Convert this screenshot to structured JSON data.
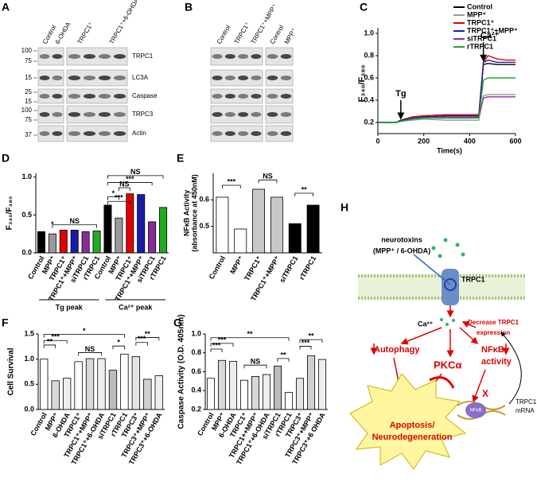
{
  "blots": [
    {
      "label": "A",
      "columns": [
        "Control",
        "6-OHDA",
        "TRPC1⁺",
        "TRPC1⁺+6-OHDA"
      ],
      "rows": [
        "TRPC1",
        "LC3A",
        "Caspase",
        "TRPC3",
        "Actin"
      ],
      "markers": [
        100,
        75,
        15,
        25,
        15,
        100,
        75,
        37
      ]
    },
    {
      "label": "B",
      "columns": [
        "Control",
        "TRPC1⁺",
        "TRPC1⁺+MPP⁺",
        "Control",
        "MPP⁺"
      ]
    }
  ],
  "chart_data": [
    {
      "type": "line",
      "label": "C",
      "y_label": "F₃₄₀/F₃₈₀",
      "x_label": "Time(s)",
      "legend": "upper right",
      "annotations": [
        "Tg",
        "Ca²⁺"
      ],
      "x": [
        0,
        80,
        100,
        150,
        200,
        300,
        400,
        440,
        460,
        480,
        520,
        560,
        600
      ],
      "xlim": [
        0,
        600
      ],
      "xticks": [
        0,
        200,
        400,
        600
      ],
      "ylim": [
        0.1,
        1.05
      ],
      "yticks": [
        0.2,
        0.4,
        0.6,
        0.8,
        {
          "value": 1,
          "label": "1.0"
        }
      ],
      "series": [
        {
          "name": "Control",
          "color": "#000000",
          "values": [
            0.2,
            0.2,
            0.22,
            0.23,
            0.24,
            0.24,
            0.24,
            0.25,
            0.72,
            0.73,
            0.72,
            0.72,
            0.72
          ]
        },
        {
          "name": "MPP⁺",
          "color": "#9a9a9a",
          "values": [
            0.2,
            0.2,
            0.21,
            0.22,
            0.23,
            0.22,
            0.22,
            0.22,
            0.44,
            0.45,
            0.45,
            0.45,
            0.45
          ]
        },
        {
          "name": "TRPC1⁺",
          "color": "#e00000",
          "values": [
            0.2,
            0.2,
            0.22,
            0.25,
            0.26,
            0.27,
            0.27,
            0.27,
            0.74,
            0.8,
            0.77,
            0.76,
            0.76
          ]
        },
        {
          "name": "TRPC1⁺+MPP⁺",
          "color": "#1a1aa8",
          "values": [
            0.2,
            0.2,
            0.22,
            0.24,
            0.25,
            0.26,
            0.26,
            0.26,
            0.74,
            0.76,
            0.74,
            0.74,
            0.74
          ]
        },
        {
          "name": "siTRPC1",
          "color": "#8a2a9a",
          "values": [
            0.2,
            0.2,
            0.21,
            0.23,
            0.24,
            0.25,
            0.25,
            0.25,
            0.42,
            0.43,
            0.43,
            0.43,
            0.43
          ]
        },
        {
          "name": "rTRPC1",
          "color": "#22aa22",
          "values": [
            0.2,
            0.2,
            0.21,
            0.23,
            0.24,
            0.24,
            0.24,
            0.24,
            0.58,
            0.6,
            0.6,
            0.6,
            0.6
          ]
        }
      ]
    },
    {
      "type": "bar",
      "label": "D",
      "y_label": "F₃₄₀/F₃₈₀",
      "groups": [
        "Tg peak",
        "Ca²⁺ peak"
      ],
      "categories": [
        "Control",
        "MPP⁺",
        "TRPC1⁺",
        "TRPC1⁺+MPP⁺",
        "siTRPC1",
        "rTRPC1",
        "Control",
        "MPP⁺",
        "TRPC1⁺",
        "TRPC1⁺+MPP⁺",
        "siTRPC1",
        "rTRPC1"
      ],
      "values": [
        0.28,
        0.25,
        0.3,
        0.3,
        0.28,
        0.29,
        0.63,
        0.46,
        0.78,
        0.77,
        0.41,
        0.6
      ],
      "colors": [
        "#000000",
        "#9a9a9a",
        "#e00000",
        "#1a1aa8",
        "#8a2a9a",
        "#22aa22",
        "#000000",
        "#9a9a9a",
        "#e00000",
        "#1a1aa8",
        "#8a2a9a",
        "#22aa22"
      ],
      "ylim": [
        0,
        1.05
      ],
      "yticks": [
        {
          "value": 0,
          "label": "0.0"
        },
        0.5,
        {
          "value": 1,
          "label": "1.0"
        }
      ],
      "annotations": [
        "*",
        "NS",
        "NS",
        "***",
        "*",
        "***",
        "NS"
      ]
    },
    {
      "type": "bar",
      "label": "E",
      "y_label": "NFκB Activity",
      "y_label2": "(absorbance at 450nM)",
      "categories": [
        "Control",
        "MPP⁺",
        "TRPC1⁺",
        "TRPC1⁺+MPP⁺",
        "siTRPC1",
        "rTRPC1"
      ],
      "values": [
        0.61,
        0.49,
        0.64,
        0.61,
        0.51,
        0.58
      ],
      "colors": [
        "#ffffff",
        "#ffffff",
        "#c8c8c8",
        "#c8c8c8",
        "#000000",
        "#000000"
      ],
      "ylim": [
        0.4,
        0.7
      ],
      "yticks": [
        0.5,
        0.6
      ],
      "annotations": [
        "***",
        "NS",
        "**"
      ]
    },
    {
      "type": "bar",
      "label": "F",
      "y_label": "Cell Survival",
      "categories": [
        "Control",
        "MPP⁺",
        "6-OHDA",
        "TRPC1⁺",
        "TRPC1⁺+MPP⁺",
        "TRPC1⁺+6-OHDA",
        "siTRPC1",
        "rTRPC1",
        "TRPC3⁺",
        "TRPC3⁺+MPP⁺",
        "TRPC3⁺+6-OHDA"
      ],
      "values": [
        1.0,
        0.57,
        0.62,
        0.95,
        1.01,
        1.01,
        0.78,
        1.1,
        1.05,
        0.6,
        0.67
      ],
      "colors": [
        "#ffffff",
        "#d8d8d8",
        "#eeeeee",
        "#ffffff",
        "#d8d8d8",
        "#eeeeee",
        "#bbbbbb",
        "#ffffff",
        "#e4e4e4",
        "#d0d0d0",
        "#eeeeee"
      ],
      "ylim": [
        0,
        1.5
      ],
      "yticks": [
        {
          "value": 0,
          "label": "0.0"
        },
        0.5,
        {
          "value": 1,
          "label": "1.0"
        },
        1.5
      ],
      "annotations": [
        "*",
        "***",
        "**",
        "NS",
        "*",
        "**",
        "***"
      ]
    },
    {
      "type": "bar",
      "label": "G",
      "y_label": "Caspase Activity (O.D. 405nm)",
      "categories": [
        "Control",
        "MPP⁺",
        "6-OHDA",
        "TRPC1⁺",
        "TRPC1++MPP⁺",
        "TRPC1⁺+6-OHDA",
        "siTRPC1",
        "rTRPC1",
        "TRPC3⁺",
        "TRPC3⁺+MPP⁺",
        "TRPC3⁺+6 OHDA"
      ],
      "values": [
        0.53,
        0.72,
        0.71,
        0.51,
        0.55,
        0.57,
        0.66,
        0.38,
        0.53,
        0.77,
        0.73
      ],
      "colors": [
        "#ffffff",
        "#d8d8d8",
        "#eeeeee",
        "#ffffff",
        "#d8d8d8",
        "#eeeeee",
        "#bbbbbb",
        "#ffffff",
        "#e4e4e4",
        "#d0d0d0",
        "#eeeeee"
      ],
      "ylim": [
        0.2,
        1.0
      ],
      "yticks": [
        0.2,
        0.4,
        0.6,
        0.8,
        {
          "value": 1,
          "label": "1.0"
        }
      ],
      "annotations": [
        "**",
        "***",
        "***",
        "NS",
        "**",
        "**",
        "***"
      ]
    }
  ],
  "diagram": {
    "label": "H",
    "toxin_line1": "neurotoxins",
    "toxin_line2": "(MPP⁺ / 6-OHDA)",
    "channel": "TRPC1",
    "calcium": "Ca²⁺",
    "decrease_line1": "Decrease TRPC1",
    "decrease_line2": "expression",
    "autophagy": "Autophagy",
    "nfkb_line1": "NFκB",
    "nfkb_line2": "activity",
    "pkc": "PKCα",
    "outcome_line1": "Apoptosis/",
    "outcome_line2": "Neurodegeneration",
    "block": "X",
    "complex": "NFκB",
    "mrna_line1": "TRPC1",
    "mrna_line2": "mRNA"
  }
}
